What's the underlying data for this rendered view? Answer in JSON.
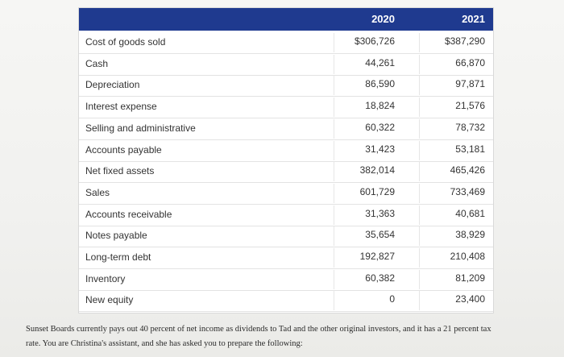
{
  "table": {
    "headers": {
      "year1": "2020",
      "year2": "2021"
    },
    "rows": [
      {
        "label": "Cost of goods sold",
        "y2020": "$306,726",
        "y2021": "$387,290"
      },
      {
        "label": "Cash",
        "y2020": "44,261",
        "y2021": "66,870"
      },
      {
        "label": "Depreciation",
        "y2020": "86,590",
        "y2021": "97,871"
      },
      {
        "label": "Interest expense",
        "y2020": "18,824",
        "y2021": "21,576"
      },
      {
        "label": "Selling and administrative",
        "y2020": "60,322",
        "y2021": "78,732"
      },
      {
        "label": "Accounts payable",
        "y2020": "31,423",
        "y2021": "53,181"
      },
      {
        "label": "Net fixed assets",
        "y2020": "382,014",
        "y2021": "465,426"
      },
      {
        "label": "Sales",
        "y2020": "601,729",
        "y2021": "733,469"
      },
      {
        "label": "Accounts receivable",
        "y2020": "31,363",
        "y2021": "40,681"
      },
      {
        "label": "Notes payable",
        "y2020": "35,654",
        "y2021": "38,929"
      },
      {
        "label": "Long-term debt",
        "y2020": "192,827",
        "y2021": "210,408"
      },
      {
        "label": "Inventory",
        "y2020": "60,382",
        "y2021": "81,209"
      },
      {
        "label": "New equity",
        "y2020": "0",
        "y2021": "23,400"
      }
    ]
  },
  "caption": {
    "line1": "Sunset Boards currently pays out 40 percent of net income as dividends to Tad and the other original investors, and it has a 21 percent tax",
    "line2": "rate. You are Christina's assistant, and she has asked you to prepare the following:"
  },
  "colors": {
    "header_bg": "#1f3a8f",
    "header_text": "#ffffff"
  }
}
